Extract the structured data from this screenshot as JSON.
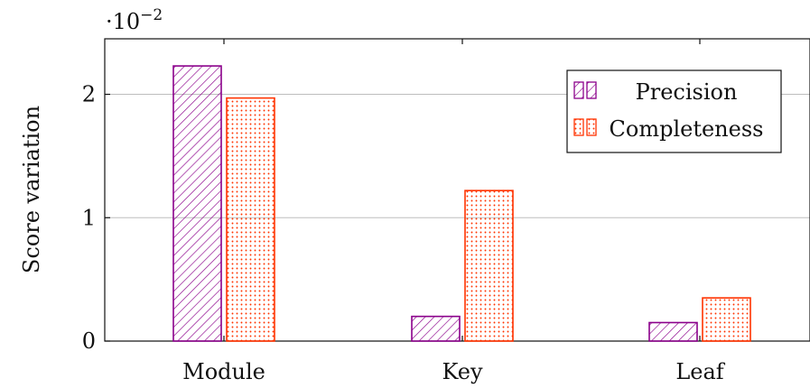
{
  "chart_data": {
    "type": "bar",
    "categories": [
      "Module",
      "Key",
      "Leaf"
    ],
    "series": [
      {
        "name": "Precision",
        "values": [
          0.0223,
          0.002,
          0.0015
        ],
        "color": "#8B008B",
        "pattern": "diagonal-hatch"
      },
      {
        "name": "Completeness",
        "values": [
          0.0197,
          0.0122,
          0.0035
        ],
        "color": "#FF3300",
        "pattern": "dots"
      }
    ],
    "ylabel": "Score variation",
    "xlabel": "",
    "title": "",
    "ylim": [
      0,
      0.0245
    ],
    "yticks": [
      0,
      0.01,
      0.02
    ],
    "ytick_labels": [
      "0",
      "1",
      "2"
    ],
    "y_multiplier_label": "·10",
    "y_multiplier_exponent": "−2",
    "grid": "horizontal",
    "legend_position": "top-right"
  }
}
